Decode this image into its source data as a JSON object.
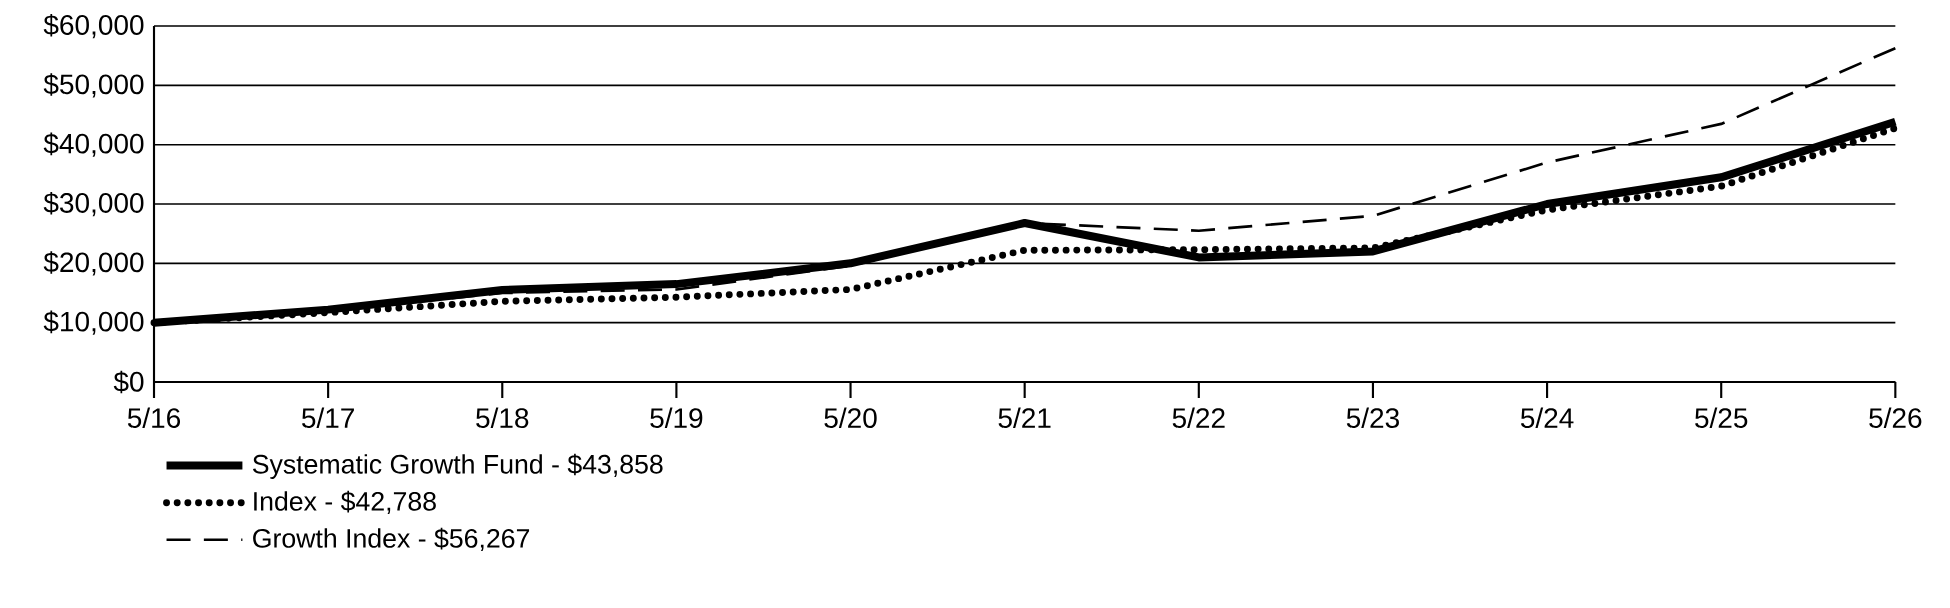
{
  "chart_data": {
    "type": "line",
    "categories": [
      "5/16",
      "5/17",
      "5/18",
      "5/19",
      "5/20",
      "5/21",
      "5/22",
      "5/23",
      "5/24",
      "5/25",
      "5/26"
    ],
    "series": [
      {
        "name": "Systematic Growth Fund - $43,858",
        "color": "#000000",
        "line_style": "solid",
        "values": [
          10000,
          12200,
          15500,
          16500,
          20000,
          26800,
          21000,
          22000,
          30000,
          34500,
          43858
        ]
      },
      {
        "name": "Index - $42,788",
        "color": "#000000",
        "line_style": "dotted",
        "values": [
          10000,
          11700,
          13600,
          14300,
          15600,
          22200,
          22300,
          22600,
          29000,
          33000,
          42788
        ]
      },
      {
        "name": "Growth Index - $56,267",
        "color": "#000000",
        "line_style": "dashed",
        "values": [
          10000,
          12000,
          15000,
          15600,
          19600,
          26800,
          25500,
          28000,
          37000,
          43500,
          56267
        ]
      }
    ],
    "ylim": [
      0,
      60000
    ],
    "yticks": [
      {
        "value": 0,
        "label": "$0"
      },
      {
        "value": 10000,
        "label": "$10,000"
      },
      {
        "value": 20000,
        "label": "$20,000"
      },
      {
        "value": 30000,
        "label": "$30,000"
      },
      {
        "value": 40000,
        "label": "$40,000"
      },
      {
        "value": 50000,
        "label": "$50,000"
      },
      {
        "value": 60000,
        "label": "$60,000"
      }
    ],
    "grid": "y",
    "legend": "bottom left",
    "marker": "none"
  }
}
